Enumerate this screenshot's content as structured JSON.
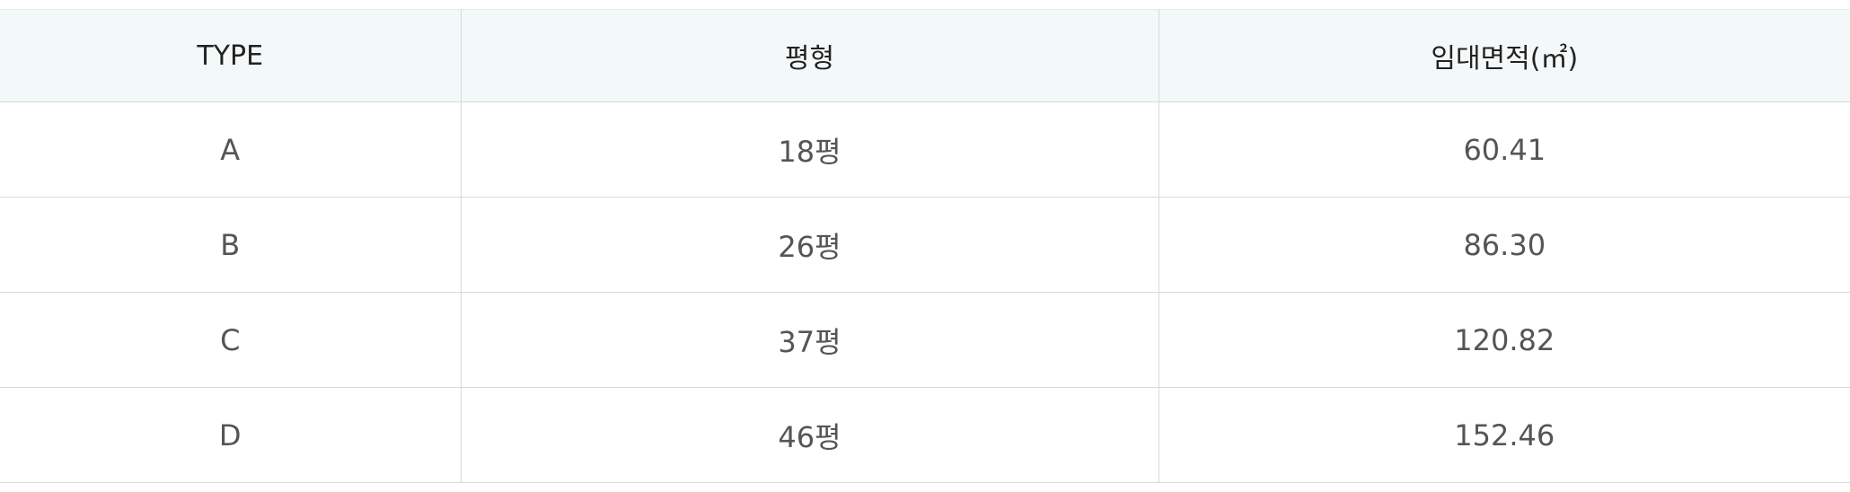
{
  "table": {
    "headers": [
      "TYPE",
      "평형",
      "임대면적(㎡)"
    ],
    "rows": [
      {
        "type": "A",
        "pyeong": "18평",
        "area": "60.41"
      },
      {
        "type": "B",
        "pyeong": "26평",
        "area": "86.30"
      },
      {
        "type": "C",
        "pyeong": "37평",
        "area": "120.82"
      },
      {
        "type": "D",
        "pyeong": "46평",
        "area": "152.46"
      }
    ]
  },
  "colors": {
    "header_bg": "#f3f9f8",
    "border": "#d9d9d9",
    "header_text": "#222222",
    "cell_text": "#555555"
  }
}
